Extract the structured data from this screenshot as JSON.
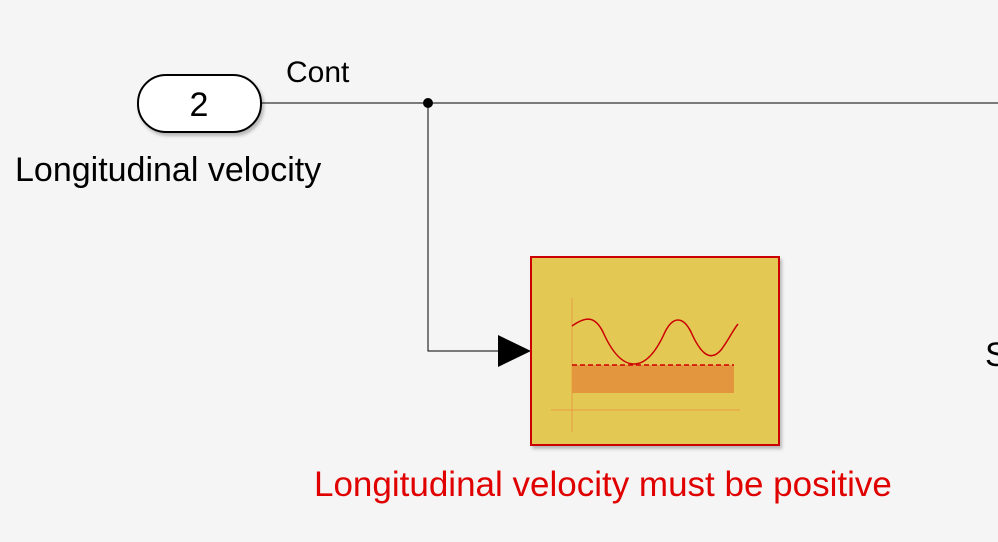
{
  "diagram": {
    "background": "#f5f5f5",
    "inport": {
      "number": "2",
      "name": "Longitudinal velocity"
    },
    "signal": {
      "name": "Cont"
    },
    "assertion_block": {
      "label": "Longitudinal velocity must be positive",
      "label_color": "#e00000",
      "fill_color": "#e3c952",
      "border_color": "#cc0000",
      "icon": "check-range-icon"
    },
    "offscreen_block_partial_label": "S"
  }
}
